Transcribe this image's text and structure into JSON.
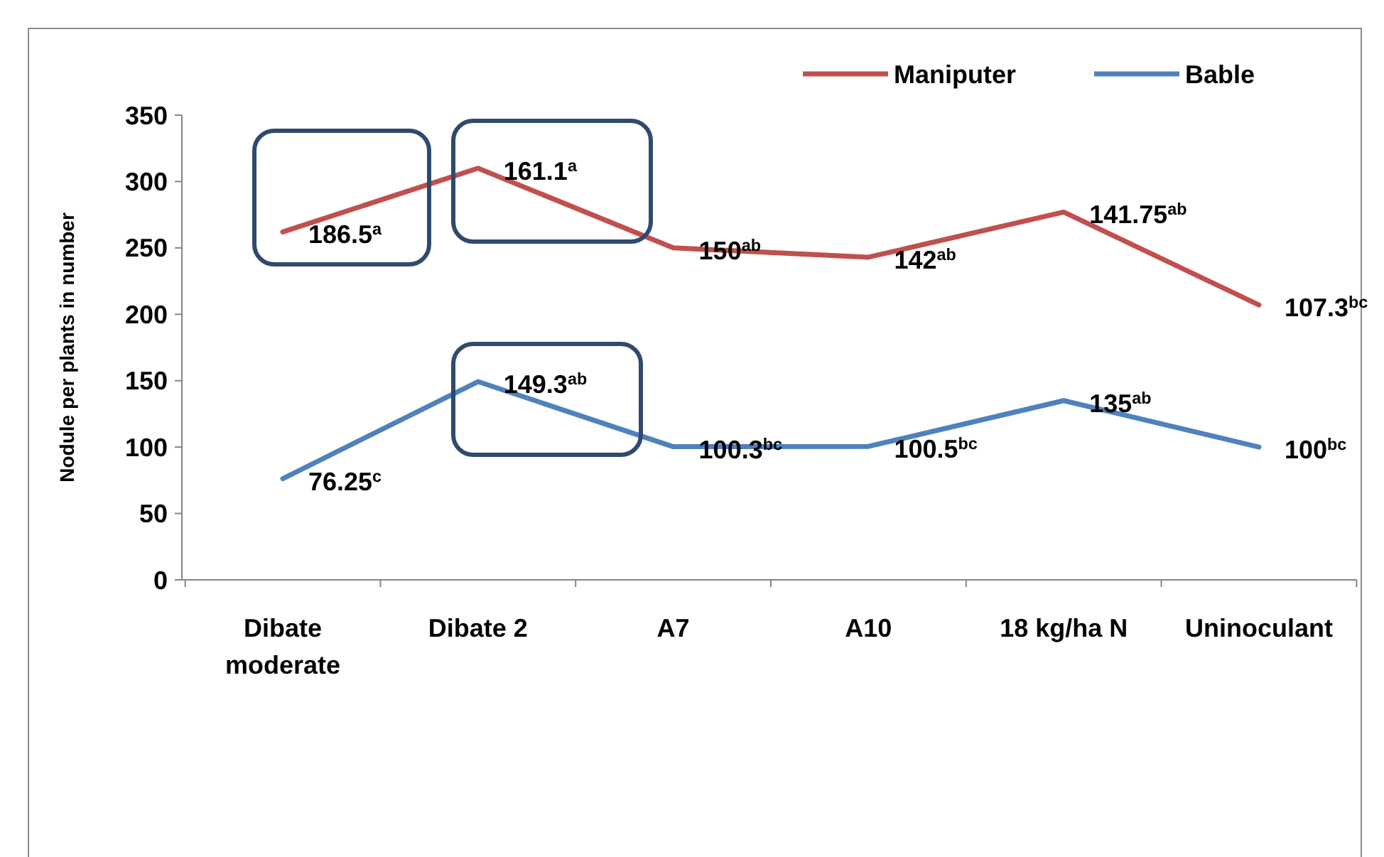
{
  "chart_data": {
    "type": "line",
    "ylabel": "Nodule per plants in number",
    "categories": [
      "Dibate moderate",
      "Dibate 2",
      "A7",
      "A10",
      "18 kg/ha N",
      "Uninoculant"
    ],
    "series": [
      {
        "name": "Maniputer",
        "color": "#c0504d",
        "values": [
          262,
          310,
          250,
          243,
          277,
          207
        ]
      },
      {
        "name": "Bable",
        "color": "#4f81bd",
        "values": [
          76.25,
          149.3,
          100.3,
          100.5,
          135,
          100
        ],
        "value_labels": [
          "76.25$^{c}$",
          "149.3$^{ab}$",
          "100.3$^{bc}$",
          "100.5$^{bc}$",
          "135$^{ab}$",
          "100$^{bc}$"
        ]
      }
    ],
    "annotations": [
      {
        "text": "186.5$^{a}$",
        "x": "Dibate moderate",
        "y": 262
      },
      {
        "text": "161.1$^{a}$",
        "x": "Dibate 2",
        "y": 310
      },
      {
        "text": "150$^{ab}$",
        "x": "A7",
        "y": 250
      },
      {
        "text": "142$^{ab}$",
        "x": "A10",
        "y": 243
      },
      {
        "text": "141.75$^{ab}$",
        "x": "18 kg/ha N",
        "y": 277
      },
      {
        "text": "107.3$^{bc}$",
        "x": "Uninoculant",
        "y": 207
      }
    ],
    "ylim": [
      0,
      350
    ],
    "yticks": [
      0,
      50,
      100,
      150,
      200,
      250,
      300,
      350
    ],
    "grid": false,
    "legend": "top right",
    "marker": "none",
    "line_style": "solid"
  }
}
